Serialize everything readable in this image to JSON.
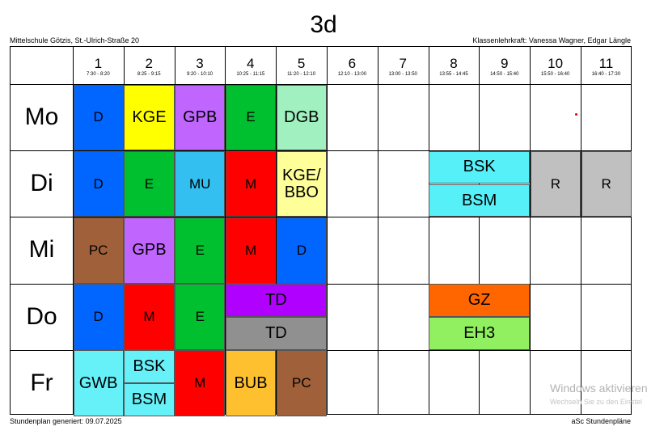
{
  "title": "3d",
  "school": "Mittelschule Götzis, St.-Ulrich-Straße 20",
  "teacher": "Klassenlehrkraft: Vanessa Wagner, Edgar Längle",
  "footer_left": "Stundenplan generiert: 09.07.2025",
  "footer_right": "aSc Stundenpläne",
  "watermark": {
    "line1": "Windows aktivieren",
    "line2": "Wechseln Sie zu den Einstel"
  },
  "periods": [
    {
      "num": "1",
      "time": "7:30 - 8:20"
    },
    {
      "num": "2",
      "time": "8:25 - 9:15"
    },
    {
      "num": "3",
      "time": "9:20 - 10:10"
    },
    {
      "num": "4",
      "time": "10:25 - 11:15"
    },
    {
      "num": "5",
      "time": "11:20 - 12:10"
    },
    {
      "num": "6",
      "time": "12:10 - 13:00"
    },
    {
      "num": "7",
      "time": "13:00 - 13:50"
    },
    {
      "num": "8",
      "time": "13:55 - 14:45"
    },
    {
      "num": "9",
      "time": "14:50 - 15:40"
    },
    {
      "num": "10",
      "time": "15:50 - 16:40"
    },
    {
      "num": "11",
      "time": "16:40 - 17:30"
    }
  ],
  "days": [
    "Mo",
    "Di",
    "Mi",
    "Do",
    "Fr"
  ],
  "lessons": [
    {
      "day": 0,
      "start": 1,
      "span": 1,
      "label": "D",
      "color": "#0066ff"
    },
    {
      "day": 0,
      "start": 2,
      "span": 1,
      "label": "KGE",
      "color": "#ffff00"
    },
    {
      "day": 0,
      "start": 3,
      "span": 1,
      "label": "GPB",
      "color": "#c066ff"
    },
    {
      "day": 0,
      "start": 4,
      "span": 1,
      "label": "E",
      "color": "#00c030"
    },
    {
      "day": 0,
      "start": 5,
      "span": 1,
      "label": "DGB",
      "color": "#a0f0c0"
    },
    {
      "day": 1,
      "start": 1,
      "span": 1,
      "label": "D",
      "color": "#0066ff"
    },
    {
      "day": 1,
      "start": 2,
      "span": 1,
      "label": "E",
      "color": "#00c030"
    },
    {
      "day": 1,
      "start": 3,
      "span": 1,
      "label": "MU",
      "color": "#33c0f0"
    },
    {
      "day": 1,
      "start": 4,
      "span": 1,
      "label": "M",
      "color": "#ff0000"
    },
    {
      "day": 1,
      "start": 5,
      "span": 1,
      "label": "KGE/\nBBO",
      "color": "#ffff99"
    },
    {
      "day": 1,
      "start": 8,
      "span": 2,
      "label": "BSK",
      "half": "top",
      "color": "#55f0f8"
    },
    {
      "day": 1,
      "start": 8,
      "span": 2,
      "label": "BSM",
      "half": "bottom",
      "color": "#55f0f8"
    },
    {
      "day": 1,
      "start": 10,
      "span": 1,
      "label": "R",
      "color": "#c0c0c0"
    },
    {
      "day": 1,
      "start": 11,
      "span": 1,
      "label": "R",
      "color": "#c0c0c0"
    },
    {
      "day": 2,
      "start": 1,
      "span": 1,
      "label": "PC",
      "color": "#a0603a"
    },
    {
      "day": 2,
      "start": 2,
      "span": 1,
      "label": "GPB",
      "color": "#c066ff"
    },
    {
      "day": 2,
      "start": 3,
      "span": 1,
      "label": "E",
      "color": "#00c030"
    },
    {
      "day": 2,
      "start": 4,
      "span": 1,
      "label": "M",
      "color": "#ff0000"
    },
    {
      "day": 2,
      "start": 5,
      "span": 1,
      "label": "D",
      "color": "#0066ff"
    },
    {
      "day": 3,
      "start": 1,
      "span": 1,
      "label": "D",
      "color": "#0066ff"
    },
    {
      "day": 3,
      "start": 2,
      "span": 1,
      "label": "M",
      "color": "#ff0000"
    },
    {
      "day": 3,
      "start": 3,
      "span": 1,
      "label": "E",
      "color": "#00c030"
    },
    {
      "day": 3,
      "start": 4,
      "span": 2,
      "label": "TD",
      "half": "top",
      "color": "#b000ff"
    },
    {
      "day": 3,
      "start": 4,
      "span": 2,
      "label": "TD",
      "half": "bottom",
      "color": "#909090"
    },
    {
      "day": 3,
      "start": 8,
      "span": 2,
      "label": "GZ",
      "half": "top",
      "color": "#ff6600"
    },
    {
      "day": 3,
      "start": 8,
      "span": 2,
      "label": "EH3",
      "half": "bottom",
      "color": "#90f060"
    },
    {
      "day": 4,
      "start": 1,
      "span": 1,
      "label": "GWB",
      "color": "#66f0f8"
    },
    {
      "day": 4,
      "start": 2,
      "span": 1,
      "label": "BSK",
      "half": "top",
      "color": "#66f0f8"
    },
    {
      "day": 4,
      "start": 2,
      "span": 1,
      "label": "BSM",
      "half": "bottom",
      "color": "#66f0f8"
    },
    {
      "day": 4,
      "start": 3,
      "span": 1,
      "label": "M",
      "color": "#ff0000"
    },
    {
      "day": 4,
      "start": 4,
      "span": 1,
      "label": "BUB",
      "color": "#ffc030"
    },
    {
      "day": 4,
      "start": 5,
      "span": 1,
      "label": "PC",
      "color": "#a0603a"
    }
  ]
}
